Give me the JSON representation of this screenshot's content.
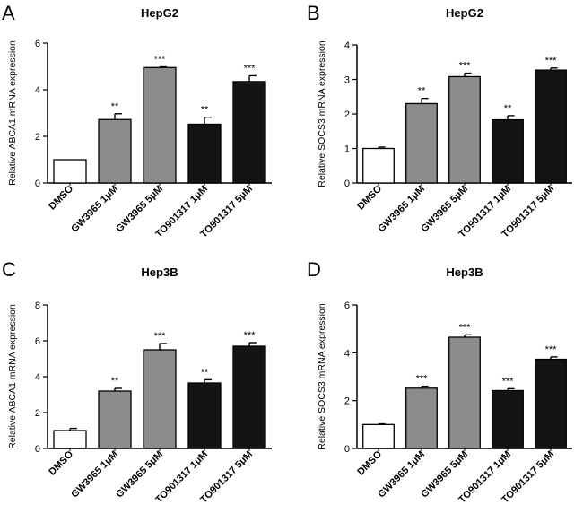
{
  "colors": {
    "DMSO": "#ffffff",
    "GW3965": "#8c8c8c",
    "TO901317": "#141414",
    "axis": "#000000"
  },
  "chart_data": [
    {
      "panel": "A",
      "type": "bar",
      "title": "HepG2",
      "ylabel": "Relative ABCA1 mRNA expression",
      "xlabel": "",
      "ylim": [
        0,
        6
      ],
      "yticks": [
        0,
        2,
        4,
        6
      ],
      "categories": [
        "DMSO",
        "GW3965 1μM",
        "GW3965 5μM",
        "TO901317 1μM",
        "TO901317 5μM"
      ],
      "values": [
        1.0,
        2.72,
        4.95,
        2.52,
        4.35
      ],
      "errors": [
        0.0,
        0.25,
        0.03,
        0.3,
        0.25
      ],
      "significance": [
        "",
        "**",
        "***",
        "**",
        "***"
      ],
      "fill": [
        "DMSO",
        "GW3965",
        "GW3965",
        "TO901317",
        "TO901317"
      ]
    },
    {
      "panel": "B",
      "type": "bar",
      "title": "HepG2",
      "ylabel": "Relative SOCS3 mRNA expression",
      "xlabel": "",
      "ylim": [
        0,
        4
      ],
      "yticks": [
        0,
        1,
        2,
        3,
        4
      ],
      "categories": [
        "DMSO",
        "GW3965 1μM",
        "GW3965 5μM",
        "TO901317 1μM",
        "TO901317 5μM"
      ],
      "values": [
        1.0,
        2.3,
        3.08,
        1.83,
        3.27
      ],
      "errors": [
        0.04,
        0.15,
        0.1,
        0.12,
        0.06
      ],
      "significance": [
        "",
        "**",
        "***",
        "**",
        "***"
      ],
      "fill": [
        "DMSO",
        "GW3965",
        "GW3965",
        "TO901317",
        "TO901317"
      ]
    },
    {
      "panel": "C",
      "type": "bar",
      "title": "Hep3B",
      "ylabel": "Relative ABCA1 mRNA expression",
      "xlabel": "",
      "ylim": [
        0,
        8
      ],
      "yticks": [
        0,
        2,
        4,
        6,
        8
      ],
      "categories": [
        "DMSO",
        "GW3965 1μM",
        "GW3965 5μM",
        "TO901317 1μM",
        "TO901317 5μM"
      ],
      "values": [
        1.0,
        3.2,
        5.5,
        3.65,
        5.7
      ],
      "errors": [
        0.12,
        0.15,
        0.35,
        0.18,
        0.2
      ],
      "significance": [
        "",
        "**",
        "***",
        "**",
        "***"
      ],
      "fill": [
        "DMSO",
        "GW3965",
        "GW3965",
        "TO901317",
        "TO901317"
      ]
    },
    {
      "panel": "D",
      "type": "bar",
      "title": "Hep3B",
      "ylabel": "Relative SOCS3 mRNA expression",
      "xlabel": "",
      "ylim": [
        0,
        6
      ],
      "yticks": [
        0,
        2,
        4,
        6
      ],
      "categories": [
        "DMSO",
        "GW3965 1μM",
        "GW3965 5μM",
        "TO901317 1μM",
        "TO901317 5μM"
      ],
      "values": [
        1.0,
        2.52,
        4.65,
        2.42,
        3.73
      ],
      "errors": [
        0.03,
        0.08,
        0.1,
        0.08,
        0.1
      ],
      "significance": [
        "",
        "***",
        "***",
        "***",
        "***"
      ],
      "fill": [
        "DMSO",
        "GW3965",
        "GW3965",
        "TO901317",
        "TO901317"
      ]
    }
  ]
}
